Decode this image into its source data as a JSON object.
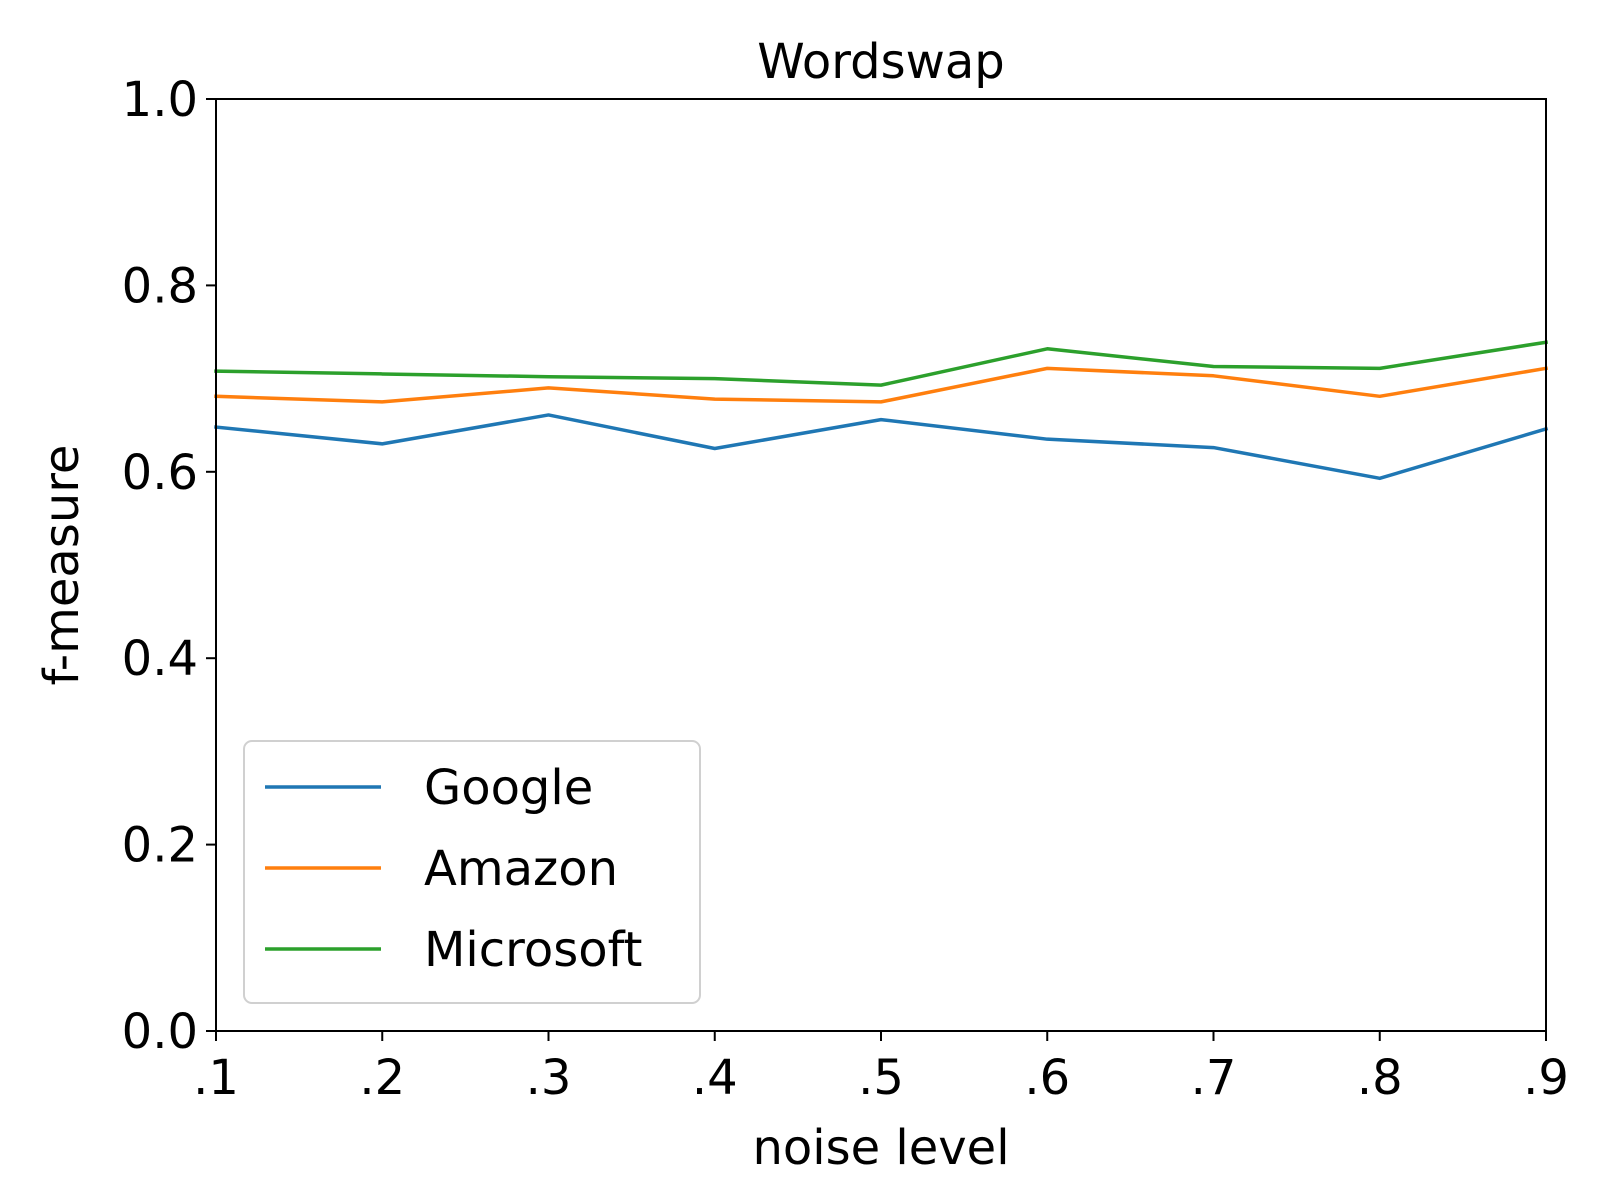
{
  "chart_data": {
    "type": "line",
    "title": "Wordswap",
    "xlabel": "noise level",
    "ylabel": "f-measure",
    "x": [
      0.1,
      0.2,
      0.3,
      0.4,
      0.5,
      0.6,
      0.7,
      0.8,
      0.9
    ],
    "x_tick_labels": [
      ".1",
      ".2",
      ".3",
      ".4",
      ".5",
      ".6",
      ".7",
      ".8",
      ".9"
    ],
    "y_tick_labels": [
      "0.0",
      "0.2",
      "0.4",
      "0.6",
      "0.8",
      "1.0"
    ],
    "xlim": [
      0.1,
      0.9
    ],
    "ylim": [
      0.0,
      1.0
    ],
    "grid": false,
    "legend_position": "lower-left",
    "series": [
      {
        "name": "Google",
        "color": "#1f77b4",
        "values": [
          0.648,
          0.63,
          0.661,
          0.625,
          0.656,
          0.635,
          0.626,
          0.593,
          0.646
        ]
      },
      {
        "name": "Amazon",
        "color": "#ff7f0e",
        "values": [
          0.681,
          0.675,
          0.69,
          0.678,
          0.675,
          0.711,
          0.703,
          0.681,
          0.711
        ]
      },
      {
        "name": "Microsoft",
        "color": "#2ca02c",
        "values": [
          0.708,
          0.705,
          0.702,
          0.7,
          0.693,
          0.732,
          0.713,
          0.711,
          0.739
        ]
      }
    ]
  }
}
